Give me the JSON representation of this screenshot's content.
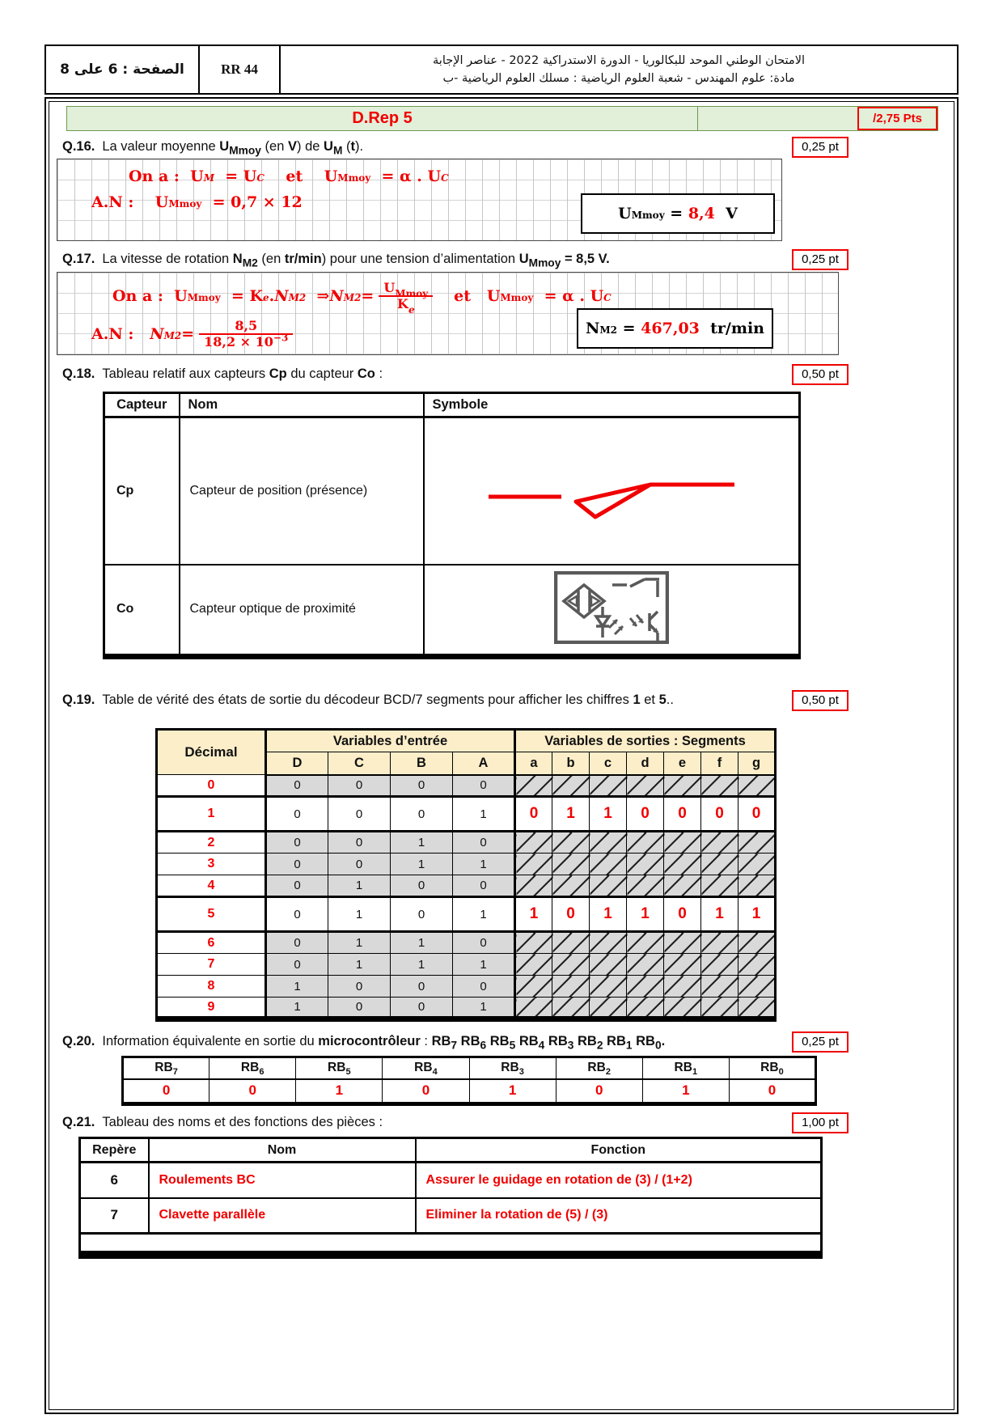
{
  "colors": {
    "red": "#f00000",
    "banner-bg": "#e2efd9",
    "banner-border": "#6b9a4f",
    "cream": "#fbeec9",
    "gray": "#d9d9d9",
    "symgray": "#595959"
  },
  "header": {
    "page": "الصفحة : 6 على 8",
    "code": "RR 44",
    "title_line1": "الامتحان الوطني الموحد للبكالوريا - الدورة الاستدراكية 2022 - عناصر الإجابة",
    "title_line2": "مادة: علوم المهندس - شعبة العلوم الرياضية : مسلك العلوم الرياضية -ب"
  },
  "banner": {
    "title": "D.Rep 5",
    "points": "/2,75 Pts"
  },
  "q16": {
    "label": "Q.16.",
    "text_html": "La valeur moyenne <b>U<sub>Mmoy</sub></b> (en <b>V</b>) de <b>U<sub>M</sub></b> (<b>t</b>).",
    "points": "0,25 pt",
    "line1_html": "On a :&nbsp;&nbsp;U<sub><i>M</i></sub>&nbsp; = U<sub><i>C</i></sub>&nbsp;&nbsp;&nbsp;&nbsp;et&nbsp;&nbsp;&nbsp;&nbsp;U<sub>Mmoy</sub>&nbsp; = α . U<sub><i>C</i></sub>",
    "line2_html": "A.N :&nbsp;&nbsp;&nbsp;&nbsp;U<sub>Mmoy</sub>&nbsp; = 0,7 × 12",
    "answer_html": "U<sub>Mmoy</sub> &nbsp;=&nbsp; <span class='rd'>8,4</span>&nbsp;&nbsp;V"
  },
  "q17": {
    "label": "Q.17.",
    "text_html": "La vitesse de rotation <b>N<sub>M2</sub></b> (en <b>tr/min</b>) pour une tension d’alimentation <b>U<sub>Mmoy</sub> = 8,5 V.</b>",
    "points": "0,25 pt",
    "line1_html": "On a :&nbsp;&nbsp;U<sub>Mmoy</sub>&nbsp; = K<sub><i>e</i></sub> . <i>N</i><sub><i>M2</i></sub>&nbsp;&nbsp;⇒ <i>N</i><sub><i>M2</i></sub> = <span class='frac'><span class='fn'>U<sub>Mmoy</sub></span><span class='fd'>K<sub><i>e</i></sub></span></span>&nbsp;&nbsp;&nbsp;et&nbsp;&nbsp;&nbsp;U<sub>Mmoy</sub>&nbsp; = α . U<sub><i>C</i></sub>",
    "line2_html": "A.N :&nbsp;&nbsp;&nbsp;<i>N</i><sub><i>M2</i></sub> = <span class='frac'><span class='fn'>8,5</span><span class='fd'>18,2 × 10<sup>−3</sup></span></span>",
    "answer_html": "N<sub>M2</sub> &nbsp;=&nbsp; <span class='rd'>467,03</span>&nbsp;&nbsp;tr/min"
  },
  "q18": {
    "label": "Q.18.",
    "text_html": "Tableau relatif aux capteurs <b>Cp</b> du capteur <b>Co</b> :",
    "points": "0,50 pt",
    "headers": [
      "Capteur",
      "Nom",
      "Symbole"
    ],
    "rows": [
      {
        "id": "Cp",
        "nom": "Capteur de position (présence)",
        "symbol": "limit-switch"
      },
      {
        "id": "Co",
        "nom": "Capteur optique de proximité",
        "symbol": "optical-proximity-sensor"
      }
    ]
  },
  "q19": {
    "label": "Q.19.",
    "text_html": "Table de vérité des états de sortie du décodeur BCD/7 segments pour afficher les chiffres <b>1</b> et <b>5</b>..",
    "points": "0,50 pt",
    "table": {
      "col_decimal": "Décimal",
      "group_inputs": "Variables d’entrée",
      "group_outputs": "Variables de sorties : Segments",
      "input_cols": [
        "D",
        "C",
        "B",
        "A"
      ],
      "output_cols": [
        "a",
        "b",
        "c",
        "d",
        "e",
        "f",
        "g"
      ],
      "rows": [
        {
          "decimal": "0",
          "inputs": [
            "0",
            "0",
            "0",
            "0"
          ],
          "outputs": null
        },
        {
          "decimal": "1",
          "inputs": [
            "0",
            "0",
            "0",
            "1"
          ],
          "outputs": [
            "0",
            "1",
            "1",
            "0",
            "0",
            "0",
            "0"
          ]
        },
        {
          "decimal": "2",
          "inputs": [
            "0",
            "0",
            "1",
            "0"
          ],
          "outputs": null
        },
        {
          "decimal": "3",
          "inputs": [
            "0",
            "0",
            "1",
            "1"
          ],
          "outputs": null
        },
        {
          "decimal": "4",
          "inputs": [
            "0",
            "1",
            "0",
            "0"
          ],
          "outputs": null
        },
        {
          "decimal": "5",
          "inputs": [
            "0",
            "1",
            "0",
            "1"
          ],
          "outputs": [
            "1",
            "0",
            "1",
            "1",
            "0",
            "1",
            "1"
          ]
        },
        {
          "decimal": "6",
          "inputs": [
            "0",
            "1",
            "1",
            "0"
          ],
          "outputs": null
        },
        {
          "decimal": "7",
          "inputs": [
            "0",
            "1",
            "1",
            "1"
          ],
          "outputs": null
        },
        {
          "decimal": "8",
          "inputs": [
            "1",
            "0",
            "0",
            "0"
          ],
          "outputs": null
        },
        {
          "decimal": "9",
          "inputs": [
            "1",
            "0",
            "0",
            "1"
          ],
          "outputs": null
        }
      ]
    }
  },
  "q20": {
    "label": "Q.20.",
    "text_html": "Information équivalente en sortie du <b>microcontrôleur</b> : <b>RB<sub>7</sub> RB<sub>6</sub> RB<sub>5</sub> RB<sub>4</sub> RB<sub>3</sub> RB<sub>2</sub> RB<sub>1</sub> RB<sub>0</sub>.</b>",
    "points": "0,25 pt",
    "headers_html": [
      "RB<sub>7</sub>",
      "RB<sub>6</sub>",
      "RB<sub>5</sub>",
      "RB<sub>4</sub>",
      "RB<sub>3</sub>",
      "RB<sub>2</sub>",
      "RB<sub>1</sub>",
      "RB<sub>0</sub>"
    ],
    "values": [
      "0",
      "0",
      "1",
      "0",
      "1",
      "0",
      "1",
      "0"
    ]
  },
  "q21": {
    "label": "Q.21.",
    "text_html": "Tableau des noms et des fonctions des pièces :",
    "points": "1,00 pt",
    "headers": [
      "Repère",
      "Nom",
      "Fonction"
    ],
    "rows": [
      {
        "repere": "6",
        "nom": "Roulements BC",
        "fonction": "Assurer le guidage en rotation de (3) / (1+2)"
      },
      {
        "repere": "7",
        "nom": "Clavette parallèle",
        "fonction": "Eliminer la rotation de (5) / (3)"
      }
    ]
  }
}
